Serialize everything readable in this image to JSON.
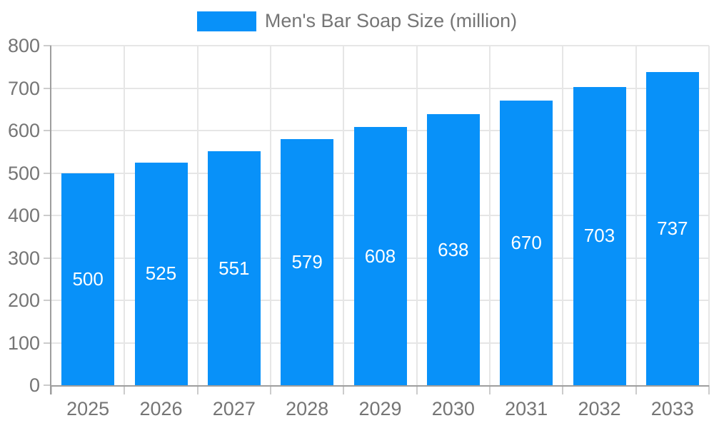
{
  "chart_data": {
    "type": "bar",
    "title": "Men's Bar Soap Size (million)",
    "categories": [
      "2025",
      "2026",
      "2027",
      "2028",
      "2029",
      "2030",
      "2031",
      "2032",
      "2033"
    ],
    "values": [
      500,
      525,
      551,
      579,
      608,
      638,
      670,
      703,
      737
    ],
    "xlabel": "",
    "ylabel": "",
    "ylim": [
      0,
      800
    ],
    "ytick_step": 100,
    "grid": true,
    "legend_position": "top",
    "colors": {
      "bar": "#0891f9",
      "grid": "#e6e6e6",
      "axis": "#9e9e9e",
      "tick": "#cccccc",
      "label": "#757575",
      "bar_label": "#ffffff"
    }
  }
}
